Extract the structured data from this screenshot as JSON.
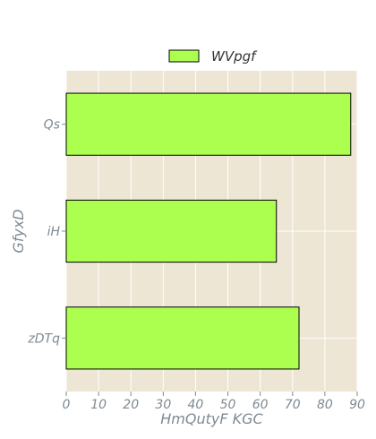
{
  "chart_data": {
    "type": "bar",
    "orientation": "horizontal",
    "categories": [
      "Qs",
      "iH",
      "zDTq"
    ],
    "series": [
      {
        "name": "WVpgf",
        "values": [
          88,
          65,
          72
        ],
        "color": "#adff4f"
      }
    ],
    "xlabel": "HmQutyF  KGC",
    "ylabel": "GfyxD",
    "xlim": [
      0,
      90
    ],
    "xticks": [
      0,
      10,
      20,
      30,
      40,
      50,
      60,
      70,
      80,
      90
    ],
    "grid": true,
    "legend_position": "top-center",
    "colors": {
      "plot_background": "#ede6d5",
      "grid": "#ffffff",
      "bar_edge": "#000000",
      "text": "#7f8a91"
    }
  }
}
